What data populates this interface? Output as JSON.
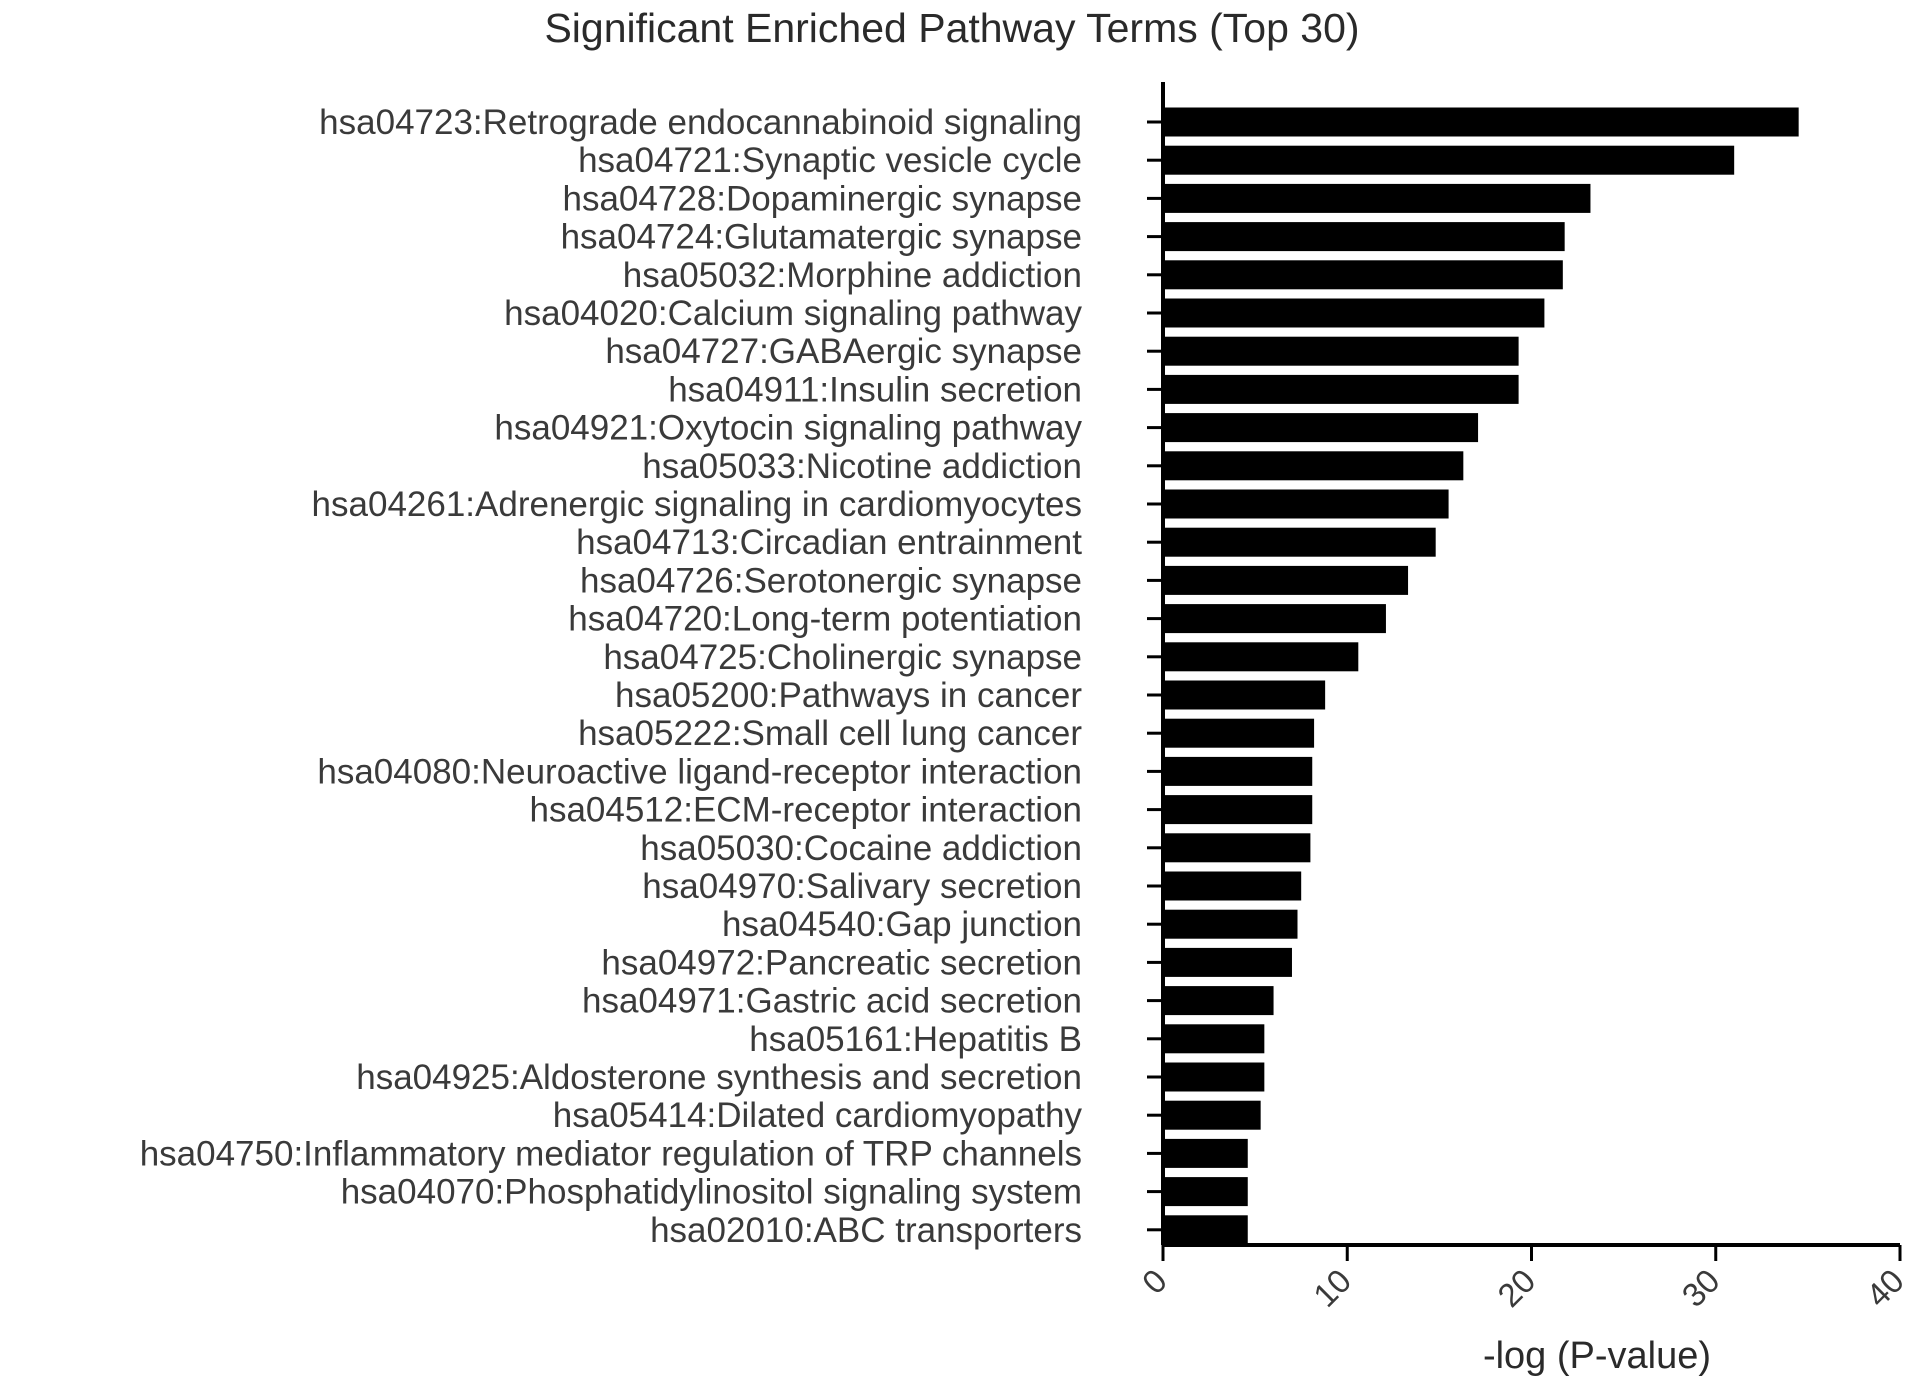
{
  "chart_data": {
    "type": "bar",
    "orientation": "horizontal",
    "title": "Significant Enriched Pathway Terms (Top 30)",
    "xlabel": "-log (P-value)",
    "ylabel": "",
    "xlim": [
      0,
      40
    ],
    "x_ticks": [
      0,
      10,
      20,
      30,
      40
    ],
    "grid": false,
    "bar_color": "#000000",
    "categories": [
      "hsa04723:Retrograde endocannabinoid signaling",
      "hsa04721:Synaptic vesicle cycle",
      "hsa04728:Dopaminergic synapse",
      "hsa04724:Glutamatergic synapse",
      "hsa05032:Morphine addiction",
      "hsa04020:Calcium signaling pathway",
      "hsa04727:GABAergic synapse",
      "hsa04911:Insulin secretion",
      "hsa04921:Oxytocin signaling pathway",
      "hsa05033:Nicotine addiction",
      "hsa04261:Adrenergic signaling in cardiomyocytes",
      "hsa04713:Circadian entrainment",
      "hsa04726:Serotonergic synapse",
      "hsa04720:Long-term potentiation",
      "hsa04725:Cholinergic synapse",
      "hsa05200:Pathways in cancer",
      "hsa05222:Small cell lung cancer",
      "hsa04080:Neuroactive ligand-receptor interaction",
      "hsa04512:ECM-receptor interaction",
      "hsa05030:Cocaine addiction",
      "hsa04970:Salivary secretion",
      "hsa04540:Gap junction",
      "hsa04972:Pancreatic secretion",
      "hsa04971:Gastric acid secretion",
      "hsa05161:Hepatitis B",
      "hsa04925:Aldosterone synthesis and secretion",
      "hsa05414:Dilated cardiomyopathy",
      "hsa04750:Inflammatory mediator regulation of TRP channels",
      "hsa04070:Phosphatidylinositol signaling system",
      "hsa02010:ABC transporters"
    ],
    "values": [
      34.5,
      31.0,
      23.2,
      21.8,
      21.7,
      20.7,
      19.3,
      19.3,
      17.1,
      16.3,
      15.5,
      14.8,
      13.3,
      12.1,
      10.6,
      8.8,
      8.2,
      8.1,
      8.1,
      8.0,
      7.5,
      7.3,
      7.0,
      6.0,
      5.5,
      5.5,
      5.3,
      4.6,
      4.6,
      4.6
    ]
  }
}
